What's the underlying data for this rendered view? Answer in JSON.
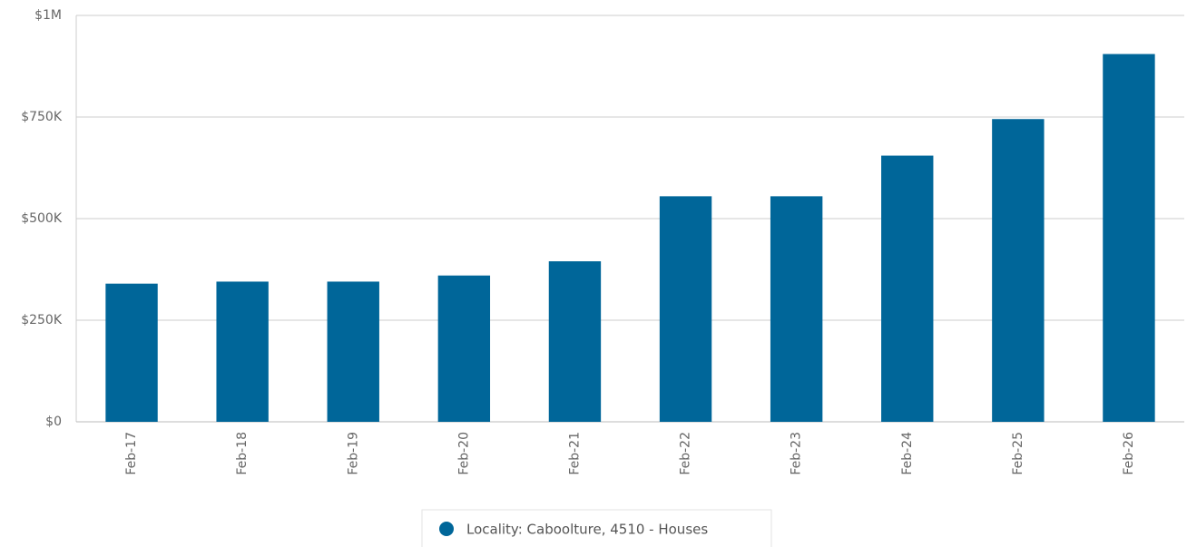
{
  "chart_data": {
    "type": "bar",
    "categories": [
      "Feb-17",
      "Feb-18",
      "Feb-19",
      "Feb-20",
      "Feb-21",
      "Feb-22",
      "Feb-23",
      "Feb-24",
      "Feb-25",
      "Feb-26"
    ],
    "series": [
      {
        "name": "Locality: Caboolture, 4510 - Houses",
        "color": "#006699",
        "values": [
          340000,
          345000,
          345000,
          360000,
          395000,
          555000,
          555000,
          655000,
          745000,
          905000
        ]
      }
    ],
    "ylim": [
      0,
      1000000
    ],
    "yticks": [
      {
        "value": 0,
        "label": "$0"
      },
      {
        "value": 250000,
        "label": "$250K"
      },
      {
        "value": 500000,
        "label": "$500K"
      },
      {
        "value": 750000,
        "label": "$750K"
      },
      {
        "value": 1000000,
        "label": "$1M"
      }
    ],
    "grid": true,
    "legend": "bottom"
  }
}
